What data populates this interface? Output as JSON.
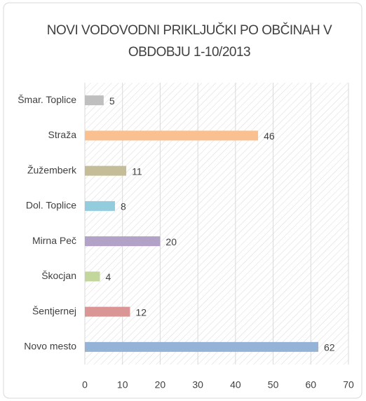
{
  "chart_data": {
    "type": "bar",
    "orientation": "horizontal",
    "title": "NOVI VODOVODNI PRIKLJUČKI PO OBČINAH V OBDOBJU 1-10/2013",
    "categories": [
      "Šmar. Toplice",
      "Straža",
      "Žužemberk",
      "Dol. Toplice",
      "Mirna Peč",
      "Škocjan",
      "Šentjernej",
      "Novo mesto"
    ],
    "values": [
      5,
      46,
      11,
      8,
      20,
      4,
      12,
      62
    ],
    "colors": [
      "#bfbfbf",
      "#fac090",
      "#c4bd97",
      "#93cddd",
      "#b3a2c7",
      "#c3d69b",
      "#d99694",
      "#95b3d7"
    ],
    "xlim": [
      0,
      70
    ],
    "xticks": [
      0,
      10,
      20,
      30,
      40,
      50,
      60,
      70
    ],
    "grid": true
  }
}
